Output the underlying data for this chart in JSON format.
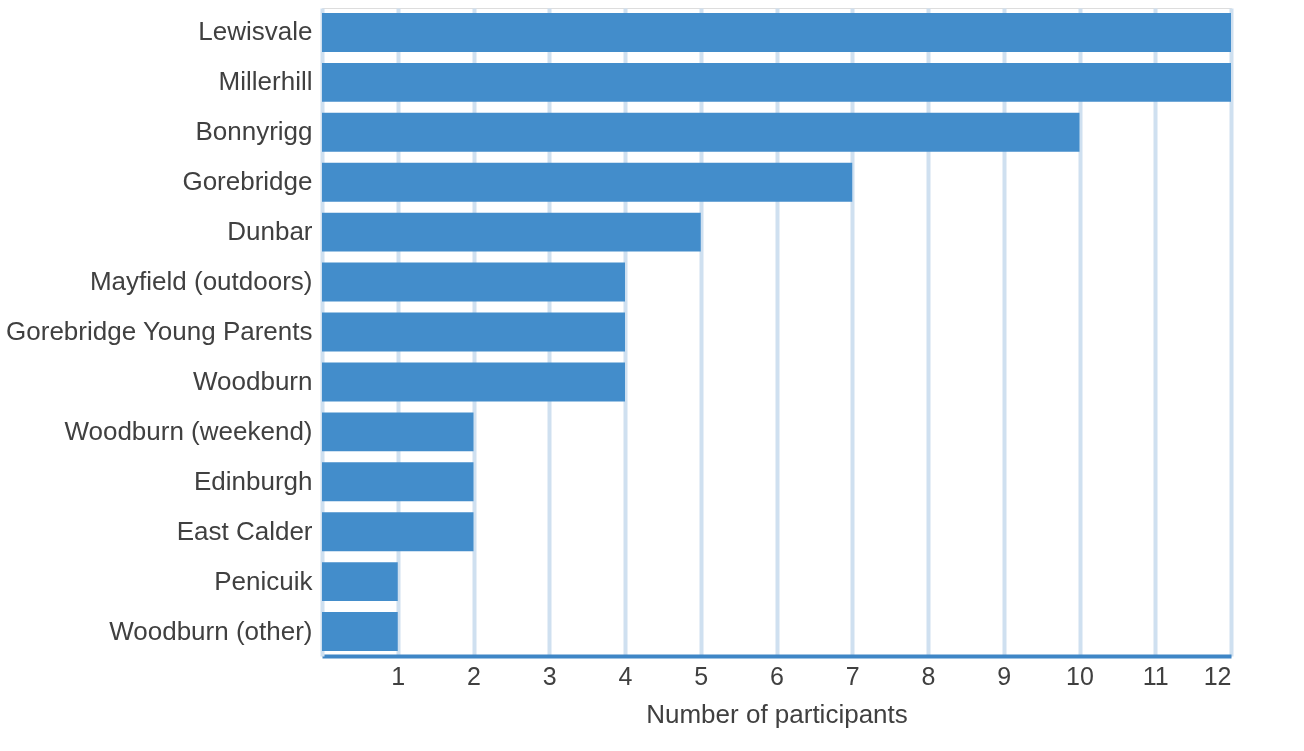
{
  "chart_data": {
    "type": "bar",
    "orientation": "horizontal",
    "xlabel": "Number of participants",
    "categories": [
      "Lewisvale",
      "Millerhill",
      "Bonnyrigg",
      "Gorebridge",
      "Dunbar",
      "Mayfield (outdoors)",
      "Gorebridge Young Parents",
      "Woodburn",
      "Woodburn (weekend)",
      "Edinburgh",
      "East Calder",
      "Penicuik",
      "Woodburn (other)"
    ],
    "values": [
      12,
      12,
      10,
      7,
      5,
      4,
      4,
      4,
      2,
      2,
      2,
      1,
      1
    ],
    "color": "#438dcb",
    "xlim": [
      0,
      12
    ],
    "xticks": [
      1,
      2,
      3,
      4,
      5,
      6,
      7,
      8,
      9,
      10,
      11,
      12
    ],
    "grid": "x"
  }
}
